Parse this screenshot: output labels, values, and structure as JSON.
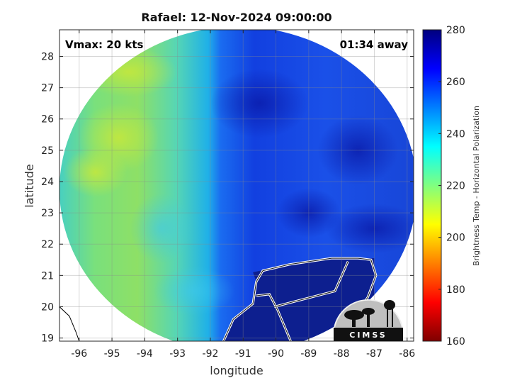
{
  "chart_data": {
    "type": "heatmap",
    "title": "Rafael: 12-Nov-2024 09:00:00",
    "xlabel": "longitude",
    "ylabel": "latitude",
    "xlim": [
      -96.6,
      -85.8
    ],
    "ylim": [
      18.9,
      28.85
    ],
    "x_ticks": [
      -96,
      -95,
      -94,
      -93,
      -92,
      -91,
      -90,
      -89,
      -88,
      -87,
      -86
    ],
    "y_ticks": [
      19,
      20,
      21,
      22,
      23,
      24,
      25,
      26,
      27,
      28
    ],
    "grid": true,
    "annotations": {
      "vmax": "Vmax: 20 kts",
      "away": "01:34 away"
    },
    "colorbar": {
      "label": "Brightness Temp - Horizontal Polarization",
      "min": 160,
      "max": 280,
      "ticks": [
        160,
        180,
        200,
        220,
        240,
        260,
        280
      ]
    },
    "swath": {
      "center_lon": -91.15,
      "center_lat": 23.75,
      "lon_radius": 5.45,
      "lat_radius": 5.2
    },
    "warm_blue_boundary_lon": -91.9,
    "cold_region_lon_min": -91.9,
    "field": [
      {
        "lon": -95.5,
        "lat": 24.3,
        "value": 222
      },
      {
        "lon": -94.8,
        "lat": 25.4,
        "value": 226
      },
      {
        "lon": -94.5,
        "lat": 27.5,
        "value": 230
      },
      {
        "lon": -93.5,
        "lat": 22.5,
        "value": 236
      },
      {
        "lon": -92.5,
        "lat": 20.5,
        "value": 240
      },
      {
        "lon": -90.5,
        "lat": 26.5,
        "value": 265
      },
      {
        "lon": -89.0,
        "lat": 23.0,
        "value": 262
      },
      {
        "lon": -87.5,
        "lat": 25.0,
        "value": 260
      },
      {
        "lon": -87.0,
        "lat": 22.5,
        "value": 258
      },
      {
        "lon": -89.5,
        "lat": 19.8,
        "value": 275
      }
    ],
    "logo": "CIMSS"
  }
}
